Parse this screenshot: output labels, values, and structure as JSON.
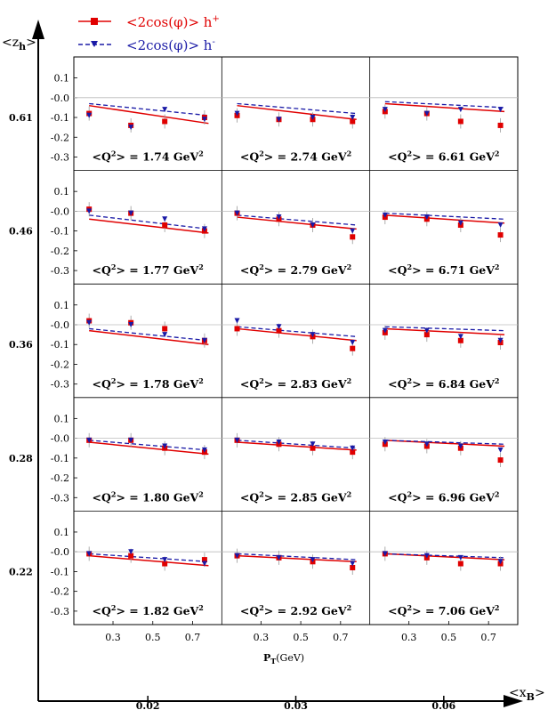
{
  "legend": {
    "hplus": {
      "prefix": "<2cos(",
      "mid": "φ",
      "suffix": ")> h",
      "sup": "+"
    },
    "hminus": {
      "prefix": "<2cos(",
      "mid": "φ",
      "suffix": ")> h",
      "sup": "-"
    }
  },
  "axes": {
    "zh_label": "<z",
    "zh_sub": "h",
    "zh_close": ">",
    "xb_label": "<x",
    "xb_sub": "B",
    "xb_close": ">",
    "pt_label": "P",
    "pt_sub": "T",
    "pt_unit": "(GeV)"
  },
  "colors": {
    "hplus": "#e00000",
    "hminus": "#1a1aa6",
    "grid": "#bbbbbb"
  },
  "chart_data": {
    "type": "scatter",
    "grid_rows_zh": [
      "0.61",
      "0.46",
      "0.36",
      "0.28",
      "0.22"
    ],
    "grid_cols_xb": [
      "0.02",
      "0.03",
      "0.06"
    ],
    "panel_ylim": [
      -0.35,
      0.17
    ],
    "panel_xlim": [
      0.13,
      0.82
    ],
    "yticks": [
      "0.1",
      "-0.0",
      "-0.1",
      "-0.2",
      "-0.3"
    ],
    "ytick_values": [
      0.1,
      0.0,
      -0.1,
      -0.2,
      -0.3
    ],
    "xticks": [
      "0.3",
      "0.5",
      "0.7"
    ],
    "xtick_values": [
      0.3,
      0.5,
      0.7
    ],
    "q2_prefix": "<Q",
    "q2_unit": "GeV",
    "q2_values": [
      [
        "1.74",
        "2.74",
        "6.61"
      ],
      [
        "1.77",
        "2.79",
        "6.71"
      ],
      [
        "1.78",
        "2.83",
        "6.84"
      ],
      [
        "1.80",
        "2.85",
        "6.96"
      ],
      [
        "1.82",
        "2.92",
        "7.06"
      ]
    ],
    "pt_points": [
      0.18,
      0.39,
      0.56,
      0.76
    ],
    "panels": [
      [
        {
          "hplus": [
            -0.08,
            -0.14,
            -0.12,
            -0.1
          ],
          "hminus": [
            -0.09,
            -0.15,
            -0.06,
            -0.11
          ],
          "line_hplus": [
            -0.04,
            -0.13
          ],
          "line_hminus": [
            -0.03,
            -0.09
          ]
        },
        {
          "hplus": [
            -0.09,
            -0.11,
            -0.11,
            -0.12
          ],
          "hminus": [
            -0.08,
            -0.11,
            -0.1,
            -0.1
          ],
          "line_hplus": [
            -0.04,
            -0.11
          ],
          "line_hminus": [
            -0.03,
            -0.08
          ]
        },
        {
          "hplus": [
            -0.07,
            -0.08,
            -0.12,
            -0.14
          ],
          "hminus": [
            -0.06,
            -0.08,
            -0.06,
            -0.06
          ],
          "line_hplus": [
            -0.03,
            -0.07
          ],
          "line_hminus": [
            -0.02,
            -0.05
          ]
        }
      ],
      [
        {
          "hplus": [
            0.01,
            -0.01,
            -0.07,
            -0.1
          ],
          "hminus": [
            0.0,
            -0.01,
            -0.04,
            -0.09
          ],
          "line_hplus": [
            -0.04,
            -0.11
          ],
          "line_hminus": [
            -0.02,
            -0.09
          ]
        },
        {
          "hplus": [
            -0.01,
            -0.04,
            -0.07,
            -0.13
          ],
          "hminus": [
            -0.01,
            -0.03,
            -0.07,
            -0.1
          ],
          "line_hplus": [
            -0.03,
            -0.09
          ],
          "line_hminus": [
            -0.02,
            -0.07
          ]
        },
        {
          "hplus": [
            -0.03,
            -0.04,
            -0.07,
            -0.12
          ],
          "hminus": [
            -0.02,
            -0.03,
            -0.06,
            -0.07
          ],
          "line_hplus": [
            -0.02,
            -0.06
          ],
          "line_hminus": [
            -0.01,
            -0.04
          ]
        }
      ],
      [
        {
          "hplus": [
            0.02,
            0.01,
            -0.02,
            -0.08
          ],
          "hminus": [
            0.01,
            0.0,
            -0.05,
            -0.08
          ],
          "line_hplus": [
            -0.03,
            -0.1
          ],
          "line_hminus": [
            -0.02,
            -0.08
          ]
        },
        {
          "hplus": [
            -0.02,
            -0.03,
            -0.06,
            -0.12
          ],
          "hminus": [
            0.02,
            -0.01,
            -0.05,
            -0.09
          ],
          "line_hplus": [
            -0.02,
            -0.08
          ],
          "line_hminus": [
            -0.01,
            -0.06
          ]
        },
        {
          "hplus": [
            -0.04,
            -0.05,
            -0.08,
            -0.09
          ],
          "hminus": [
            -0.03,
            -0.03,
            -0.06,
            -0.08
          ],
          "line_hplus": [
            -0.02,
            -0.05
          ],
          "line_hminus": [
            -0.01,
            -0.03
          ]
        }
      ],
      [
        {
          "hplus": [
            -0.01,
            -0.01,
            -0.05,
            -0.07
          ],
          "hminus": [
            -0.01,
            -0.01,
            -0.04,
            -0.06
          ],
          "line_hplus": [
            -0.02,
            -0.08
          ],
          "line_hminus": [
            -0.01,
            -0.06
          ]
        },
        {
          "hplus": [
            -0.01,
            -0.03,
            -0.05,
            -0.07
          ],
          "hminus": [
            -0.01,
            -0.02,
            -0.03,
            -0.05
          ],
          "line_hplus": [
            -0.02,
            -0.06
          ],
          "line_hminus": [
            -0.01,
            -0.05
          ]
        },
        {
          "hplus": [
            -0.03,
            -0.04,
            -0.05,
            -0.11
          ],
          "hminus": [
            -0.02,
            -0.03,
            -0.04,
            -0.06
          ],
          "line_hplus": [
            -0.01,
            -0.04
          ],
          "line_hminus": [
            -0.01,
            -0.03
          ]
        }
      ],
      [
        {
          "hplus": [
            -0.01,
            -0.02,
            -0.06,
            -0.04
          ],
          "hminus": [
            -0.01,
            0.0,
            -0.04,
            -0.06
          ],
          "line_hplus": [
            -0.02,
            -0.07
          ],
          "line_hminus": [
            -0.01,
            -0.05
          ]
        },
        {
          "hplus": [
            -0.02,
            -0.03,
            -0.05,
            -0.08
          ],
          "hminus": [
            -0.02,
            -0.03,
            -0.04,
            -0.06
          ],
          "line_hplus": [
            -0.02,
            -0.05
          ],
          "line_hminus": [
            -0.01,
            -0.04
          ]
        },
        {
          "hplus": [
            -0.01,
            -0.03,
            -0.06,
            -0.06
          ],
          "hminus": [
            -0.01,
            -0.02,
            -0.03,
            -0.05
          ],
          "line_hplus": [
            -0.01,
            -0.04
          ],
          "line_hminus": [
            -0.01,
            -0.03
          ]
        }
      ]
    ]
  }
}
